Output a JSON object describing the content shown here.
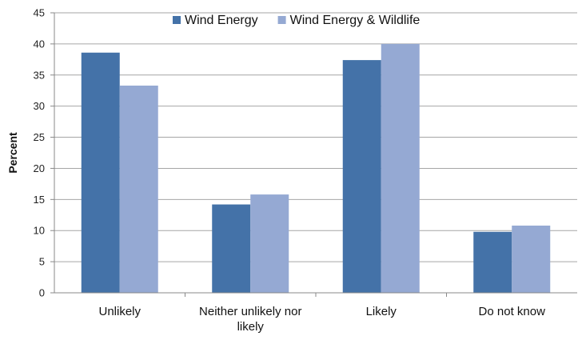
{
  "chart_data": {
    "type": "bar",
    "title": "",
    "xlabel": "",
    "ylabel": "Percent",
    "ylim": [
      0,
      45
    ],
    "yticks": [
      0,
      5,
      10,
      15,
      20,
      25,
      30,
      35,
      40,
      45
    ],
    "grid": true,
    "legend_position": "top",
    "categories": [
      [
        "Unlikely"
      ],
      [
        "Neither unlikely nor",
        "likely"
      ],
      [
        "Likely"
      ],
      [
        "Do not know"
      ]
    ],
    "series": [
      {
        "name": "Wind Energy",
        "color": "#4472A8",
        "values": [
          38.6,
          14.2,
          37.4,
          9.8
        ]
      },
      {
        "name": "Wind Energy & Wildlife",
        "color": "#95A9D3",
        "values": [
          33.3,
          15.8,
          40.0,
          10.8
        ]
      }
    ]
  }
}
